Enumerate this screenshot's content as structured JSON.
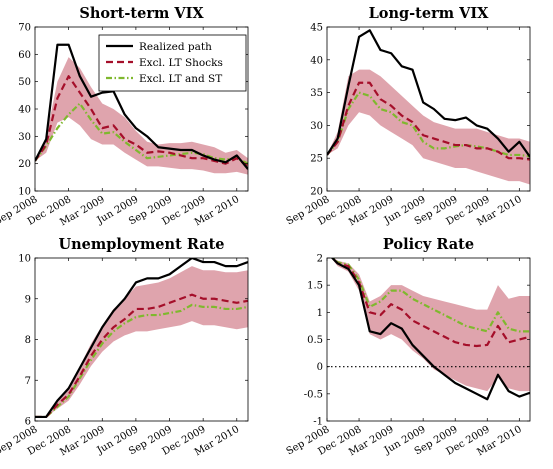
{
  "chart_data": [
    {
      "type": "line",
      "title": "Short-term VIX",
      "ylim": [
        10,
        70
      ],
      "yticks": [
        10,
        20,
        30,
        40,
        50,
        60,
        70
      ],
      "xticks": [
        "Sep 2008",
        "Dec 2008",
        "Mar 2009",
        "Jun 2009",
        "Sep 2009",
        "Dec 2009",
        "Mar 2010"
      ],
      "has_legend": true,
      "series": [
        {
          "name": "Realized path",
          "values": [
            21,
            29,
            63.5,
            63.5,
            52,
            44.5,
            46,
            46.5,
            38,
            33,
            30,
            26,
            25.5,
            25,
            25,
            23,
            21.5,
            20.5,
            23,
            18
          ]
        },
        {
          "name": "Excl. LT Shocks",
          "values": [
            21,
            27,
            44,
            52,
            46,
            40,
            33,
            34,
            29,
            27,
            24,
            24.5,
            24,
            23,
            22,
            22,
            21,
            20,
            22,
            19
          ]
        },
        {
          "name": "Excl. LT and ST",
          "values": [
            21,
            26.5,
            33,
            38,
            42,
            36,
            31,
            31.5,
            28,
            25,
            22,
            22.5,
            23,
            23.5,
            24,
            23.5,
            22,
            21.5,
            22,
            20
          ]
        }
      ],
      "band_upper": [
        21,
        30,
        50,
        59,
        55,
        48,
        42,
        40,
        37,
        32,
        28,
        27,
        27.5,
        27.5,
        28,
        27,
        26,
        24,
        25,
        22
      ],
      "band_lower": [
        21,
        24,
        35,
        37,
        34,
        29,
        27,
        27,
        24,
        21.5,
        19,
        19,
        18.5,
        18,
        18,
        17.5,
        16.5,
        16.5,
        17,
        16
      ]
    },
    {
      "type": "line",
      "title": "Long-term VIX",
      "ylim": [
        20,
        45
      ],
      "yticks": [
        20,
        25,
        30,
        35,
        40,
        45
      ],
      "xticks": [
        "Sep 2008",
        "Dec 2008",
        "Mar 2009",
        "Jun 2009",
        "Sep 2009",
        "Dec 2009",
        "Mar 2010"
      ],
      "has_legend": false,
      "series": [
        {
          "name": "Realized path",
          "values": [
            25.5,
            28,
            36,
            43.5,
            44.5,
            41.5,
            41,
            39,
            38.5,
            33.5,
            32.5,
            31,
            30.8,
            31.2,
            30,
            29.5,
            28,
            26,
            27.5,
            25.2
          ]
        },
        {
          "name": "Excl. LT Shocks",
          "values": [
            25.5,
            27.5,
            33,
            36.5,
            36.5,
            34,
            33,
            31.5,
            30.5,
            28.5,
            28,
            27.5,
            27,
            27,
            26.5,
            26.5,
            26,
            25,
            25,
            24.8
          ]
        },
        {
          "name": "Excl. LT and ST",
          "values": [
            25.5,
            27.5,
            32.5,
            35,
            34.5,
            32.5,
            32,
            30.5,
            30,
            27.5,
            26.5,
            26.5,
            26.8,
            27,
            26.8,
            26.5,
            26,
            25.5,
            25.5,
            25.3
          ]
        }
      ],
      "band_upper": [
        25.5,
        29,
        37.5,
        38.5,
        38.5,
        37.5,
        36,
        34.5,
        33,
        31.5,
        30.5,
        30,
        29.5,
        29.5,
        29.5,
        29,
        28.5,
        28,
        28,
        27.5
      ],
      "band_lower": [
        25.5,
        26.5,
        30,
        32,
        31.5,
        30,
        29,
        28,
        27,
        25,
        24.5,
        24,
        23.5,
        23.5,
        23,
        22.5,
        22,
        21.5,
        21.5,
        21
      ]
    },
    {
      "type": "line",
      "title": "Unemployment Rate",
      "ylim": [
        6,
        10
      ],
      "yticks": [
        6,
        7,
        8,
        9,
        10
      ],
      "xticks": [
        "Sep 2008",
        "Dec 2008",
        "Mar 2009",
        "Jun 2009",
        "Sep 2009",
        "Dec 2009",
        "Mar 2010"
      ],
      "has_legend": false,
      "series": [
        {
          "name": "Realized path",
          "values": [
            6.1,
            6.1,
            6.5,
            6.8,
            7.3,
            7.8,
            8.3,
            8.7,
            9.0,
            9.4,
            9.5,
            9.5,
            9.6,
            9.8,
            10.0,
            9.9,
            9.9,
            9.8,
            9.8,
            9.9
          ]
        },
        {
          "name": "Excl. LT Shocks",
          "values": [
            6.1,
            6.1,
            6.4,
            6.65,
            7.1,
            7.6,
            8.0,
            8.3,
            8.5,
            8.75,
            8.75,
            8.8,
            8.9,
            9.0,
            9.1,
            9.0,
            9.0,
            8.95,
            8.9,
            8.95
          ]
        },
        {
          "name": "Excl. LT and ST",
          "values": [
            6.1,
            6.1,
            6.35,
            6.6,
            7.05,
            7.5,
            7.9,
            8.2,
            8.4,
            8.55,
            8.6,
            8.6,
            8.65,
            8.7,
            8.85,
            8.8,
            8.8,
            8.75,
            8.75,
            8.8
          ]
        }
      ],
      "band_upper": [
        6.1,
        6.1,
        6.5,
        6.85,
        7.35,
        7.9,
        8.35,
        8.75,
        9.0,
        9.3,
        9.35,
        9.4,
        9.5,
        9.65,
        9.8,
        9.7,
        9.7,
        9.65,
        9.65,
        9.7
      ],
      "band_lower": [
        6.1,
        6.1,
        6.3,
        6.5,
        6.9,
        7.35,
        7.7,
        7.95,
        8.1,
        8.2,
        8.2,
        8.25,
        8.3,
        8.35,
        8.45,
        8.35,
        8.35,
        8.3,
        8.25,
        8.3
      ]
    },
    {
      "type": "line",
      "title": "Policy Rate",
      "ylim": [
        -1,
        2
      ],
      "yticks": [
        -1,
        -0.5,
        0,
        0.5,
        1,
        1.5,
        2
      ],
      "xticks": [
        "Sep 2008",
        "Dec 2008",
        "Mar 2009",
        "Jun 2009",
        "Sep 2009",
        "Dec 2009",
        "Mar 2010"
      ],
      "has_legend": false,
      "reference_line": 0,
      "series": [
        {
          "name": "Realized path",
          "values": [
            2.1,
            1.9,
            1.8,
            1.5,
            0.65,
            0.6,
            0.8,
            0.7,
            0.4,
            0.2,
            0.0,
            -0.15,
            -0.3,
            -0.4,
            -0.5,
            -0.6,
            -0.15,
            -0.45,
            -0.55,
            -0.48
          ]
        },
        {
          "name": "Excl. LT Shocks",
          "values": [
            2.1,
            1.9,
            1.85,
            1.55,
            1.0,
            0.95,
            1.15,
            1.05,
            0.85,
            0.75,
            0.65,
            0.55,
            0.45,
            0.4,
            0.38,
            0.4,
            0.75,
            0.45,
            0.5,
            0.55
          ]
        },
        {
          "name": "Excl. LT and ST",
          "values": [
            2.1,
            1.92,
            1.88,
            1.6,
            1.1,
            1.2,
            1.4,
            1.4,
            1.25,
            1.15,
            1.05,
            0.95,
            0.85,
            0.75,
            0.7,
            0.65,
            1.0,
            0.7,
            0.65,
            0.65
          ]
        }
      ],
      "band_upper": [
        2.1,
        1.95,
        1.9,
        1.7,
        1.2,
        1.3,
        1.5,
        1.5,
        1.4,
        1.3,
        1.25,
        1.2,
        1.15,
        1.1,
        1.05,
        1.05,
        1.5,
        1.25,
        1.3,
        1.3
      ],
      "band_lower": [
        2.1,
        1.85,
        1.75,
        1.4,
        0.6,
        0.5,
        0.6,
        0.5,
        0.3,
        0.15,
        -0.05,
        -0.15,
        -0.25,
        -0.35,
        -0.4,
        -0.45,
        -0.2,
        -0.4,
        -0.45,
        -0.45
      ]
    }
  ],
  "legend": {
    "entries": [
      "Realized path",
      "Excl. LT Shocks",
      "Excl. LT and ST"
    ]
  },
  "colors": {
    "realized": "#000000",
    "excl_lt": "#a50f2a",
    "excl_lt_st": "#7fb82e",
    "band": "#d9949f"
  }
}
